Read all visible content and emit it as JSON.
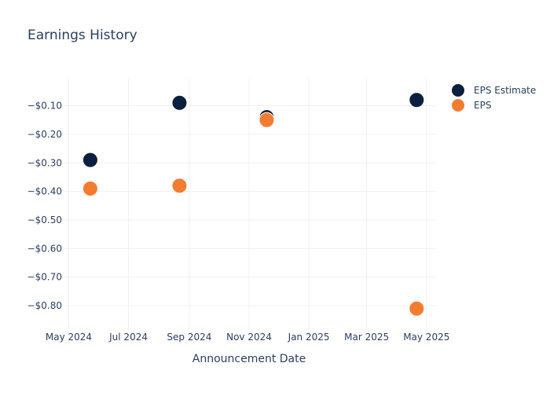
{
  "chart_data": {
    "type": "scatter",
    "title": "Earnings History",
    "xlabel": "Announcement Date",
    "ylabel": "",
    "x_ticks": [
      "May 2024",
      "Jul 2024",
      "Sep 2024",
      "Nov 2024",
      "Jan 2025",
      "Mar 2025",
      "May 2025"
    ],
    "x_tick_dates": [
      "2024-05-01",
      "2024-07-01",
      "2024-09-01",
      "2024-11-01",
      "2025-01-01",
      "2025-03-01",
      "2025-05-01"
    ],
    "xlim": [
      "2024-04-25",
      "2025-05-10"
    ],
    "y_ticks": [
      "−$0.10",
      "−$0.20",
      "−$0.30",
      "−$0.40",
      "−$0.50",
      "−$0.60",
      "−$0.70",
      "−$0.80"
    ],
    "y_tick_values": [
      -0.1,
      -0.2,
      -0.3,
      -0.4,
      -0.5,
      -0.6,
      -0.7,
      -0.8
    ],
    "ylim": [
      -0.885,
      -0.005
    ],
    "grid": true,
    "legend_position": "top-right",
    "series": [
      {
        "name": "EPS Estimate",
        "color": "#0b1f3f",
        "points": [
          {
            "x": "2024-05-23",
            "y": -0.29
          },
          {
            "x": "2024-08-22",
            "y": -0.09
          },
          {
            "x": "2024-11-19",
            "y": -0.14
          },
          {
            "x": "2025-04-21",
            "y": -0.08
          }
        ]
      },
      {
        "name": "EPS",
        "color": "#f47c30",
        "points": [
          {
            "x": "2024-05-23",
            "y": -0.39
          },
          {
            "x": "2024-08-22",
            "y": -0.38
          },
          {
            "x": "2024-11-19",
            "y": -0.15
          },
          {
            "x": "2025-04-21",
            "y": -0.81
          }
        ]
      }
    ]
  }
}
